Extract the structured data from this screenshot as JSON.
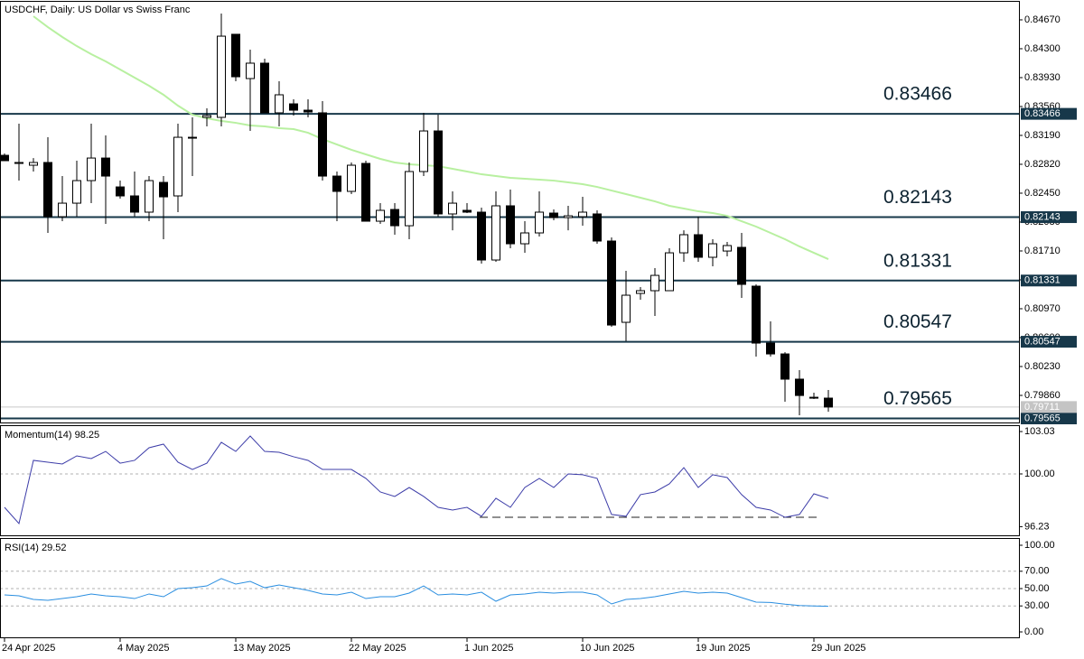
{
  "chart_data": [
    {
      "type": "candlestick",
      "title": "USDCHF, Daily:  US Dollar vs Swiss Franc",
      "categories": [
        "24 Apr 2025",
        null,
        null,
        null,
        null,
        null,
        null,
        null,
        "4 May 2025",
        null,
        null,
        null,
        null,
        null,
        null,
        null,
        "13 May 2025",
        null,
        null,
        null,
        null,
        null,
        null,
        null,
        "22 May 2025",
        null,
        null,
        null,
        null,
        null,
        null,
        null,
        "1 Jun 2025",
        null,
        null,
        null,
        null,
        null,
        null,
        null,
        "10 Jun 2025",
        null,
        null,
        null,
        null,
        null,
        null,
        null,
        "19 Jun 2025",
        null,
        null,
        null,
        null,
        null,
        null,
        null,
        "29 Jun 2025",
        null
      ],
      "open": [
        0.82935,
        0.82831,
        0.82808,
        0.82843,
        0.82149,
        0.82322,
        0.82611,
        0.829,
        0.8253,
        0.82415,
        0.82207,
        0.82588,
        0.82415,
        0.83166,
        0.83421,
        0.83421,
        0.84485,
        0.83918,
        0.84115,
        0.83479,
        0.83594,
        0.83513,
        0.83479,
        0.82669,
        0.82473,
        0.82831,
        0.82091,
        0.82241,
        0.82033,
        0.82727,
        0.83247,
        0.82184,
        0.8223,
        0.82207,
        0.81594,
        0.82288,
        0.81802,
        0.81941,
        0.82195,
        0.82137,
        0.82149,
        0.82184,
        0.81837,
        0.80796,
        0.81166,
        0.81201,
        0.81201,
        0.81686,
        0.81918,
        0.81629,
        0.81709,
        0.81756,
        0.81259,
        0.8053,
        0.80391,
        0.80068,
        0.79836,
        0.79825
      ],
      "high": [
        0.82958,
        0.8334,
        0.829,
        0.83166,
        0.82669,
        0.82866,
        0.8334,
        0.8319,
        0.82611,
        0.82727,
        0.82669,
        0.82669,
        0.8334,
        0.83421,
        0.83536,
        0.84751,
        0.84485,
        0.84288,
        0.84172,
        0.83883,
        0.83652,
        0.83652,
        0.83629,
        0.82727,
        0.82843,
        0.82866,
        0.82322,
        0.82322,
        0.82843,
        0.83479,
        0.83455,
        0.82473,
        0.82322,
        0.82265,
        0.82473,
        0.82496,
        0.82091,
        0.82473,
        0.82241,
        0.82288,
        0.82403,
        0.8223,
        0.81883,
        0.81455,
        0.81247,
        0.8149,
        0.81744,
        0.81975,
        0.82149,
        0.8186,
        0.81825,
        0.81941,
        0.81282,
        0.80808,
        0.80414,
        0.80183,
        0.79894,
        0.79929
      ],
      "low": [
        0.82866,
        0.82611,
        0.82727,
        0.81941,
        0.82091,
        0.82149,
        0.82322,
        0.82056,
        0.8238,
        0.82149,
        0.82091,
        0.8186,
        0.82207,
        0.82669,
        0.83305,
        0.83305,
        0.83883,
        0.83247,
        0.83479,
        0.83305,
        0.83444,
        0.83421,
        0.82611,
        0.82091,
        0.82438,
        0.82091,
        0.82056,
        0.81918,
        0.8186,
        0.82669,
        0.82149,
        0.81975,
        0.82195,
        0.81548,
        0.81571,
        0.81744,
        0.81686,
        0.81895,
        0.82103,
        0.81975,
        0.82033,
        0.81802,
        0.80738,
        0.80553,
        0.81085,
        0.80877,
        0.81201,
        0.81571,
        0.81571,
        0.81513,
        0.8164,
        0.81108,
        0.80357,
        0.80357,
        0.79779,
        0.79605,
        0.79813,
        0.79651
      ],
      "close": [
        0.82866,
        0.82843,
        0.82843,
        0.82149,
        0.82322,
        0.82611,
        0.829,
        0.82669,
        0.82415,
        0.82207,
        0.82611,
        0.82403,
        0.83166,
        0.83155,
        0.83444,
        0.84461,
        0.83941,
        0.84115,
        0.83479,
        0.8371,
        0.83513,
        0.8349,
        0.82669,
        0.82473,
        0.82808,
        0.82091,
        0.8223,
        0.82033,
        0.82727,
        0.83247,
        0.82184,
        0.82322,
        0.82207,
        0.81594,
        0.82288,
        0.81802,
        0.81941,
        0.82207,
        0.82137,
        0.8216,
        0.82207,
        0.81837,
        0.80761,
        0.81143,
        0.81201,
        0.81397,
        0.81686,
        0.81918,
        0.81629,
        0.81802,
        0.81779,
        0.81282,
        0.8053,
        0.80391,
        0.80068,
        0.79859,
        0.79825,
        0.79711
      ],
      "up_color": "#ffffff",
      "down_color": "#000000",
      "moving_average": {
        "color": "#b8f0a0",
        "values": [
          null,
          null,
          0.84716,
          0.84577,
          0.8445,
          0.84334,
          0.8423,
          0.84138,
          0.84034,
          0.8393,
          0.83826,
          0.8371,
          0.83571,
          0.83455,
          0.83409,
          0.83375,
          0.83351,
          0.83317,
          0.83305,
          0.83282,
          0.83271,
          0.83224,
          0.83143,
          0.83074,
          0.83005,
          0.82947,
          0.82889,
          0.82843,
          0.8282,
          0.82808,
          0.82796,
          0.82762,
          0.82727,
          0.82692,
          0.82669,
          0.82646,
          0.82635,
          0.82623,
          0.82611,
          0.82588,
          0.82565,
          0.8253,
          0.82484,
          0.82438,
          0.82392,
          0.82345,
          0.82288,
          0.82253,
          0.82218,
          0.82195,
          0.8216,
          0.82091,
          0.82022,
          0.81941,
          0.8186,
          0.81768,
          0.81686,
          0.81605
        ]
      },
      "levels": [
        0.83466,
        0.82143,
        0.81331,
        0.80547,
        0.79565
      ],
      "level_color": "#17384a",
      "last_price": 0.79711,
      "ylim": [
        0.79513,
        0.84901
      ],
      "yticks": [
        {
          "value": 0.8467,
          "label": "0.84670"
        },
        {
          "value": 0.843,
          "label": "0.84300"
        },
        {
          "value": 0.8393,
          "label": "0.83930"
        },
        {
          "value": 0.8356,
          "label": "0.83560"
        },
        {
          "value": 0.8319,
          "label": "0.83190"
        },
        {
          "value": 0.8282,
          "label": "0.82820"
        },
        {
          "value": 0.8245,
          "label": "0.82450"
        },
        {
          "value": 0.8208,
          "label": "0.82080"
        },
        {
          "value": 0.8171,
          "label": "0.81710"
        },
        {
          "value": 0.8134,
          "label": "0.81340"
        },
        {
          "value": 0.8097,
          "label": "0.80970"
        },
        {
          "value": 0.806,
          "label": "0.80600"
        },
        {
          "value": 0.8023,
          "label": "0.80230"
        },
        {
          "value": 0.7986,
          "label": "0.79860"
        }
      ]
    },
    {
      "type": "line",
      "title": "Momentum(14) 98.25",
      "color": "#3c3ca8",
      "values": [
        97.61,
        96.45,
        100.97,
        100.84,
        100.71,
        101.29,
        101.1,
        101.61,
        100.77,
        100.97,
        101.87,
        102.13,
        100.84,
        100.32,
        100.77,
        102.26,
        101.61,
        102.71,
        101.61,
        101.55,
        101.23,
        100.97,
        100.32,
        100.32,
        100.32,
        99.68,
        98.71,
        98.39,
        99.03,
        98.39,
        97.61,
        97.42,
        97.61,
        96.97,
        98.26,
        97.61,
        99.03,
        99.68,
        99.03,
        100.0,
        99.94,
        99.68,
        97.1,
        96.97,
        98.52,
        98.71,
        99.29,
        100.45,
        99.03,
        99.94,
        99.74,
        98.52,
        97.61,
        97.42,
        96.9,
        97.1,
        98.58,
        98.25
      ],
      "ylim": [
        95.61,
        103.42
      ],
      "yticks": [
        103.03,
        {
          "value": 100,
          "label": "100.00"
        },
        96.23
      ],
      "reference_lines": [
        100
      ],
      "support_line": {
        "start": 33,
        "end": 56,
        "value": 96.9
      }
    },
    {
      "type": "line",
      "title": "RSI(14) 29.52",
      "color": "#2a8ee0",
      "values": [
        42.7,
        41.7,
        37.5,
        36.5,
        38.5,
        40.6,
        43.8,
        41.7,
        40.6,
        38.5,
        43.8,
        40.6,
        50.0,
        51.0,
        53.1,
        61.5,
        55.2,
        58.3,
        51.0,
        54.2,
        51.0,
        47.9,
        43.8,
        42.7,
        45.8,
        38.5,
        40.6,
        40.6,
        44.8,
        53.1,
        42.7,
        43.8,
        42.7,
        45.8,
        35.4,
        42.7,
        43.8,
        45.8,
        44.8,
        45.8,
        45.8,
        42.7,
        32.3,
        37.5,
        38.5,
        40.6,
        43.8,
        46.9,
        44.8,
        45.8,
        44.8,
        39.6,
        34.4,
        34.0,
        32.0,
        30.5,
        29.9,
        29.52
      ],
      "ylim": [
        -6.25,
        107.3
      ],
      "yticks": [
        {
          "value": 100,
          "label": "100.00"
        },
        {
          "value": 70,
          "label": "70.00"
        },
        {
          "value": 50,
          "label": "50.00"
        },
        {
          "value": 30,
          "label": "30.00"
        },
        {
          "value": 0,
          "label": "0.00"
        }
      ],
      "reference_lines": [
        70,
        50,
        30
      ]
    }
  ]
}
